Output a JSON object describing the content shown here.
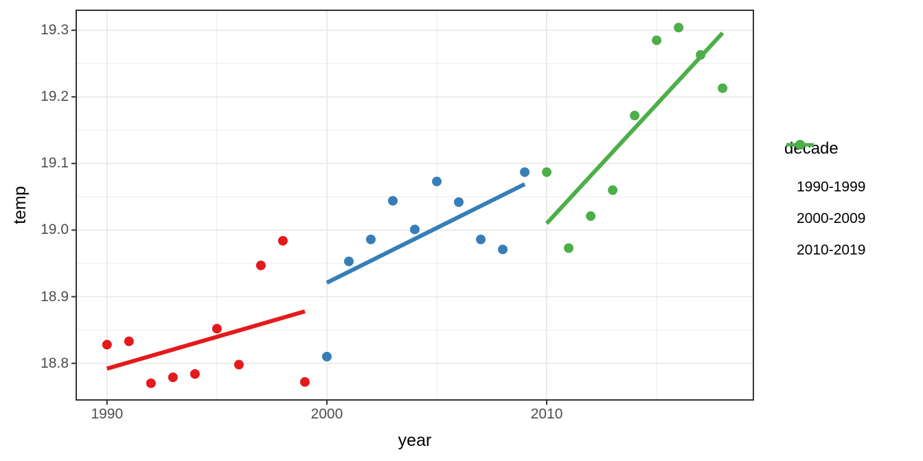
{
  "figure": {
    "background": "#ffffff",
    "panel_border_color": "#333333",
    "grid_color": "#ebebeb",
    "tick_color": "#333333",
    "tick_text_color": "#4d4d4d"
  },
  "axes": {
    "x_title": "year",
    "y_title": "temp",
    "x_tick_labels": [
      "1990",
      "2000",
      "2010"
    ],
    "y_tick_labels": [
      "18.8",
      "18.9",
      "19.0",
      "19.1",
      "19.2",
      "19.3"
    ]
  },
  "legend": {
    "title": "decade",
    "items": [
      {
        "label": "1990-1999",
        "color": "#E41A1C",
        "icon": "line-dot-icon"
      },
      {
        "label": "2000-2009",
        "color": "#377EB8",
        "icon": "line-dot-icon"
      },
      {
        "label": "2010-2019",
        "color": "#4DAF4A",
        "icon": "line-dot-icon"
      }
    ]
  },
  "chart_data": {
    "type": "scatter",
    "title": "",
    "xlabel": "year",
    "ylabel": "temp",
    "xlim": [
      1988.6,
      2019.4
    ],
    "ylim": [
      18.745,
      19.33
    ],
    "x_major_ticks": [
      1990,
      2000,
      2010
    ],
    "x_minor_ticks": [
      1995,
      2005,
      2015
    ],
    "y_major_ticks": [
      18.8,
      18.9,
      19.0,
      19.1,
      19.2,
      19.3
    ],
    "y_minor_ticks": [
      18.85,
      18.95,
      19.05,
      19.15,
      19.25
    ],
    "grid": true,
    "legend_position": "right",
    "point_radius_px": 7,
    "trend_stroke_px": 6,
    "series": [
      {
        "name": "1990-1999",
        "color": "#E41A1C",
        "x": [
          1990,
          1991,
          1992,
          1993,
          1994,
          1995,
          1996,
          1997,
          1998,
          1999
        ],
        "y": [
          18.828,
          18.833,
          18.77,
          18.779,
          18.784,
          18.852,
          18.798,
          18.947,
          18.984,
          18.772
        ],
        "trend": {
          "x": [
            1990,
            1999
          ],
          "y": [
            18.792,
            18.878
          ]
        }
      },
      {
        "name": "2000-2009",
        "color": "#377EB8",
        "x": [
          2000,
          2001,
          2002,
          2003,
          2004,
          2005,
          2006,
          2007,
          2008,
          2009
        ],
        "y": [
          18.81,
          18.953,
          18.986,
          19.044,
          19.001,
          19.073,
          19.042,
          18.986,
          18.971,
          19.087
        ],
        "trend": {
          "x": [
            2000,
            2009
          ],
          "y": [
            18.921,
            19.069
          ]
        }
      },
      {
        "name": "2010-2019",
        "color": "#4DAF4A",
        "x": [
          2010,
          2011,
          2012,
          2013,
          2014,
          2015,
          2016,
          2017,
          2018
        ],
        "y": [
          19.087,
          18.973,
          19.021,
          19.06,
          19.172,
          19.285,
          19.304,
          19.263,
          19.213
        ],
        "trend": {
          "x": [
            2010,
            2018
          ],
          "y": [
            19.01,
            19.296
          ]
        }
      }
    ]
  }
}
